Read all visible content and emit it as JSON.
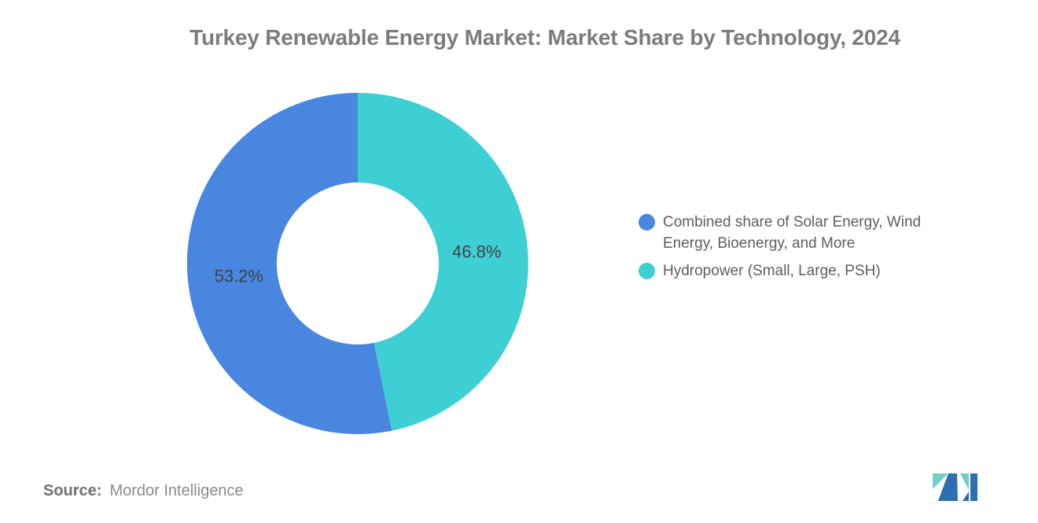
{
  "title": "Turkey Renewable Energy Market: Market Share by Technology, 2024",
  "chart_data": {
    "type": "pie",
    "subtype": "donut",
    "title": "Turkey Renewable Energy Market: Market Share by Technology, 2024",
    "slices": [
      {
        "label": "Combined share of Solar Energy, Wind Energy, Bioenergy, and More",
        "value": 53.2,
        "pct_label": "53.2%",
        "color": "#4886e0"
      },
      {
        "label": "Hydropower (Small, Large, PSH)",
        "value": 46.8,
        "pct_label": "46.8%",
        "color": "#3ecfd4"
      }
    ],
    "start_angle_deg": 168.48,
    "donut_hole_ratio": 0.475,
    "legend_position": "right",
    "label_color": "#3e4245"
  },
  "source": {
    "prefix": "Source:",
    "name": "Mordor Intelligence"
  },
  "logo": {
    "label": "mordor-intelligence-logo",
    "blue": "#2d6fb0",
    "teal": "#74cfc9"
  }
}
